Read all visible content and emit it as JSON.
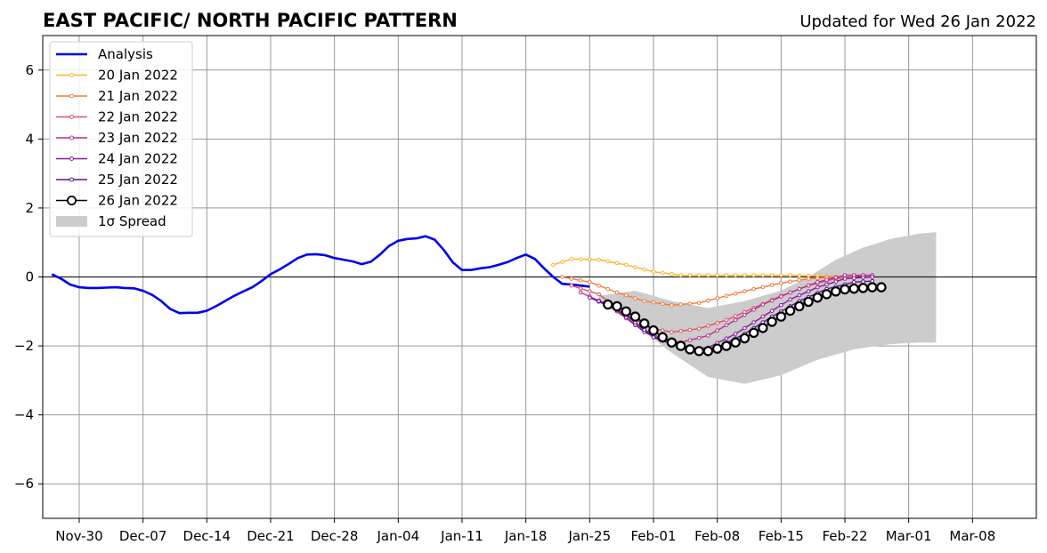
{
  "chart_data": {
    "type": "line",
    "title": "EAST PACIFIC/ NORTH PACIFIC PATTERN",
    "subtitle": "Updated for Wed 26 Jan 2022",
    "xlabel": "",
    "ylabel": "",
    "xlim": [
      "2021-11-26",
      "2022-03-15"
    ],
    "ylim": [
      -7,
      7
    ],
    "grid": true,
    "legend_position": "top-left",
    "x_ticks": [
      "Nov-30",
      "Dec-07",
      "Dec-14",
      "Dec-21",
      "Dec-28",
      "Jan-04",
      "Jan-11",
      "Jan-18",
      "Jan-25",
      "Feb-01",
      "Feb-08",
      "Feb-15",
      "Feb-22",
      "Mar-01",
      "Mar-08"
    ],
    "x_tick_dates": [
      "2021-11-30",
      "2021-12-07",
      "2021-12-14",
      "2021-12-21",
      "2021-12-28",
      "2022-01-04",
      "2022-01-11",
      "2022-01-18",
      "2022-01-25",
      "2022-02-01",
      "2022-02-08",
      "2022-02-15",
      "2022-02-22",
      "2022-03-01",
      "2022-03-08"
    ],
    "y_ticks": [
      "6",
      "4",
      "2",
      "0",
      "−2",
      "−4",
      "−6"
    ],
    "y_tick_values": [
      6,
      4,
      2,
      0,
      -2,
      -4,
      -6
    ],
    "analysis": {
      "name": "Analysis",
      "color": "#0000ee",
      "start": "2021-11-27",
      "values": [
        0.08,
        -0.05,
        -0.22,
        -0.3,
        -0.32,
        -0.32,
        -0.31,
        -0.3,
        -0.32,
        -0.33,
        -0.4,
        -0.52,
        -0.7,
        -0.93,
        -1.05,
        -1.04,
        -1.04,
        -0.98,
        -0.85,
        -0.7,
        -0.55,
        -0.42,
        -0.3,
        -0.12,
        0.08,
        0.22,
        0.38,
        0.55,
        0.65,
        0.66,
        0.63,
        0.55,
        0.5,
        0.45,
        0.37,
        0.44,
        0.65,
        0.9,
        1.05,
        1.1,
        1.12,
        1.18,
        1.08,
        0.78,
        0.42,
        0.2,
        0.2,
        0.25,
        0.28,
        0.35,
        0.43,
        0.55,
        0.65,
        0.52,
        0.25,
        0.0,
        -0.2,
        -0.22,
        -0.25,
        -0.28
      ]
    },
    "forecasts": [
      {
        "name": "20 Jan 2022",
        "color": "#f7b52b",
        "start": "2022-01-21",
        "knots": [
          [
            0,
            0.35
          ],
          [
            2,
            0.52
          ],
          [
            5,
            0.5
          ],
          [
            8,
            0.35
          ],
          [
            11,
            0.15
          ],
          [
            14,
            0.05
          ],
          [
            20,
            0.05
          ],
          [
            26,
            0.05
          ],
          [
            30,
            0.02
          ]
        ]
      },
      {
        "name": "21 Jan 2022",
        "color": "#f07d3f",
        "start": "2022-01-22",
        "knots": [
          [
            0,
            0.0
          ],
          [
            3,
            -0.15
          ],
          [
            6,
            -0.45
          ],
          [
            9,
            -0.7
          ],
          [
            12,
            -0.82
          ],
          [
            15,
            -0.75
          ],
          [
            18,
            -0.55
          ],
          [
            21,
            -0.35
          ],
          [
            24,
            -0.18
          ],
          [
            27,
            -0.05
          ],
          [
            30,
            0.0
          ],
          [
            32,
            0.0
          ]
        ]
      },
      {
        "name": "22 Jan 2022",
        "color": "#dc5369",
        "start": "2022-01-23",
        "knots": [
          [
            0,
            -0.25
          ],
          [
            3,
            -0.5
          ],
          [
            6,
            -1.1
          ],
          [
            9,
            -1.5
          ],
          [
            11,
            -1.6
          ],
          [
            14,
            -1.5
          ],
          [
            17,
            -1.25
          ],
          [
            20,
            -0.9
          ],
          [
            23,
            -0.55
          ],
          [
            26,
            -0.25
          ],
          [
            29,
            -0.05
          ],
          [
            32,
            0.05
          ],
          [
            33,
            0.05
          ]
        ]
      },
      {
        "name": "23 Jan 2022",
        "color": "#b82f8c",
        "start": "2022-01-24",
        "knots": [
          [
            0,
            -0.45
          ],
          [
            3,
            -0.8
          ],
          [
            6,
            -1.4
          ],
          [
            9,
            -1.8
          ],
          [
            11,
            -1.9
          ],
          [
            14,
            -1.7
          ],
          [
            17,
            -1.25
          ],
          [
            20,
            -0.8
          ],
          [
            23,
            -0.45
          ],
          [
            26,
            -0.15
          ],
          [
            29,
            0.05
          ],
          [
            32,
            0.05
          ]
        ]
      },
      {
        "name": "24 Jan 2022",
        "color": "#8b1a9e",
        "start": "2022-01-25",
        "knots": [
          [
            0,
            -0.6
          ],
          [
            3,
            -0.95
          ],
          [
            6,
            -1.6
          ],
          [
            9,
            -1.95
          ],
          [
            11,
            -2.1
          ],
          [
            13,
            -2.05
          ],
          [
            16,
            -1.65
          ],
          [
            19,
            -1.15
          ],
          [
            22,
            -0.65
          ],
          [
            25,
            -0.3
          ],
          [
            28,
            -0.05
          ],
          [
            31,
            0.0
          ]
        ]
      },
      {
        "name": "25 Jan 2022",
        "color": "#5a1196",
        "start": "2022-01-26",
        "knots": [
          [
            0,
            -0.7
          ],
          [
            3,
            -1.1
          ],
          [
            6,
            -1.75
          ],
          [
            9,
            -2.05
          ],
          [
            11,
            -2.15
          ],
          [
            13,
            -2.05
          ],
          [
            16,
            -1.65
          ],
          [
            19,
            -1.15
          ],
          [
            22,
            -0.7
          ],
          [
            25,
            -0.35
          ],
          [
            28,
            -0.15
          ],
          [
            30,
            -0.12
          ]
        ]
      }
    ],
    "current_forecast": {
      "name": "26 Jan 2022",
      "color": "#000000",
      "start": "2022-01-27",
      "values": [
        -0.8,
        -0.85,
        -1.0,
        -1.15,
        -1.35,
        -1.55,
        -1.75,
        -1.9,
        -2.0,
        -2.1,
        -2.15,
        -2.15,
        -2.08,
        -2.0,
        -1.9,
        -1.78,
        -1.62,
        -1.48,
        -1.3,
        -1.15,
        -0.98,
        -0.85,
        -0.72,
        -0.6,
        -0.5,
        -0.42,
        -0.36,
        -0.34,
        -0.32,
        -0.3,
        -0.3
      ]
    },
    "spread": {
      "name": "1σ Spread",
      "color": "#cccccc",
      "start": "2022-01-26",
      "upper_knots": [
        [
          0,
          -0.55
        ],
        [
          4,
          -0.4
        ],
        [
          8,
          -0.7
        ],
        [
          12,
          -0.9
        ],
        [
          16,
          -0.7
        ],
        [
          20,
          -0.4
        ],
        [
          23,
          0.0
        ],
        [
          26,
          0.5
        ],
        [
          29,
          0.85
        ],
        [
          32,
          1.1
        ],
        [
          35,
          1.25
        ],
        [
          37,
          1.3
        ]
      ],
      "lower_knots": [
        [
          0,
          -0.7
        ],
        [
          4,
          -1.4
        ],
        [
          8,
          -2.2
        ],
        [
          12,
          -2.9
        ],
        [
          16,
          -3.1
        ],
        [
          20,
          -2.85
        ],
        [
          24,
          -2.4
        ],
        [
          28,
          -2.1
        ],
        [
          32,
          -1.95
        ],
        [
          35,
          -1.9
        ],
        [
          37,
          -1.9
        ]
      ]
    }
  }
}
